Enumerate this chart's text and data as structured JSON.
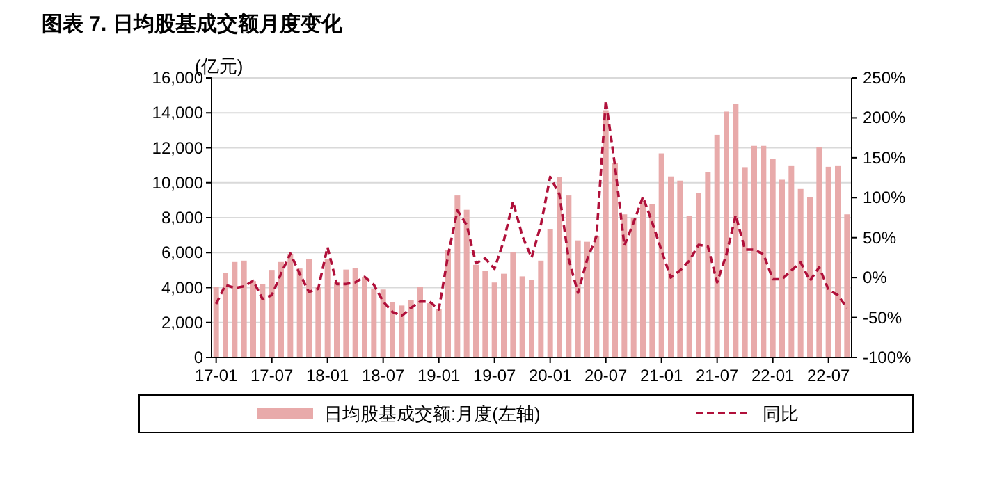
{
  "chart_data": {
    "type": "bar",
    "title": "图表 7. 日均股基成交额月度变化",
    "ylabel": "(亿元)",
    "categories": [
      "17-01",
      null,
      null,
      null,
      null,
      null,
      "17-07",
      null,
      null,
      null,
      null,
      null,
      "18-01",
      null,
      null,
      null,
      null,
      null,
      "18-07",
      null,
      null,
      null,
      null,
      null,
      "19-01",
      null,
      null,
      null,
      null,
      null,
      "19-07",
      null,
      null,
      null,
      null,
      null,
      "20-01",
      null,
      null,
      null,
      null,
      null,
      "20-07",
      null,
      null,
      null,
      null,
      null,
      "21-01",
      null,
      null,
      null,
      null,
      null,
      "21-07",
      null,
      null,
      null,
      null,
      null,
      "22-01",
      null,
      null,
      null,
      null,
      null,
      "22-07",
      null,
      null
    ],
    "series": [
      {
        "name": "日均股基成交额:月度(左轴)",
        "color": "#e8aaaa",
        "values": [
          4030,
          4820,
          5460,
          5540,
          4370,
          4210,
          5010,
          5460,
          5930,
          5090,
          5620,
          4030,
          5620,
          4340,
          5030,
          5110,
          4610,
          3950,
          3890,
          3180,
          2970,
          3280,
          4030,
          3100,
          2750,
          6150,
          9270,
          8450,
          5300,
          4950,
          4290,
          4790,
          6010,
          4640,
          4420,
          5540,
          7360,
          10330,
          9270,
          6700,
          6620,
          6940,
          14150,
          11130,
          8190,
          7970,
          8950,
          8790,
          11680,
          10360,
          10120,
          8110,
          9430,
          10620,
          12740,
          14070,
          14520,
          10890,
          12110,
          12110,
          11360,
          10170,
          10990,
          9640,
          9170,
          12030,
          10910,
          10990,
          8190
        ]
      },
      {
        "name": "同比",
        "type": "line",
        "axis": "y2",
        "color": "#b0103a",
        "line_style": "dashed",
        "values": [
          -33,
          -9,
          -13,
          -11,
          -4,
          -27,
          -22,
          5,
          30,
          5,
          -18,
          -14,
          38,
          -8,
          -8,
          -6,
          1,
          -9,
          -30,
          -43,
          -48,
          -38,
          -30,
          -30,
          -40,
          28,
          84,
          66,
          18,
          24,
          11,
          46,
          95,
          52,
          25,
          66,
          126,
          104,
          23,
          -19,
          23,
          52,
          222,
          139,
          40,
          69,
          101,
          69,
          34,
          0,
          9,
          21,
          41,
          39,
          -6,
          29,
          78,
          35,
          35,
          29,
          -2,
          -2,
          9,
          19,
          -4,
          13,
          -15,
          -22,
          -38
        ]
      }
    ],
    "ylim": [
      0,
      16000
    ],
    "yticks": [
      0,
      {
        "value": 2000,
        "label": "2,000"
      },
      {
        "value": 4000,
        "label": "4,000"
      },
      {
        "value": 6000,
        "label": "6,000"
      },
      {
        "value": 8000,
        "label": "8,000"
      },
      {
        "value": 10000,
        "label": "10,000"
      },
      {
        "value": 12000,
        "label": "12,000"
      },
      {
        "value": 14000,
        "label": "14,000"
      },
      {
        "value": 16000,
        "label": "16,000"
      }
    ],
    "y2lim": [
      -100,
      250
    ],
    "y2ticks": [
      {
        "value": -100,
        "label": "-100%"
      },
      {
        "value": -50,
        "label": "-50%"
      },
      {
        "value": 0,
        "label": "0%"
      },
      {
        "value": 50,
        "label": "50%"
      },
      {
        "value": 100,
        "label": "100%"
      },
      {
        "value": 150,
        "label": "150%"
      },
      {
        "value": 200,
        "label": "200%"
      },
      {
        "value": 250,
        "label": "250%"
      }
    ],
    "grid": "y",
    "legend": "bottom"
  }
}
